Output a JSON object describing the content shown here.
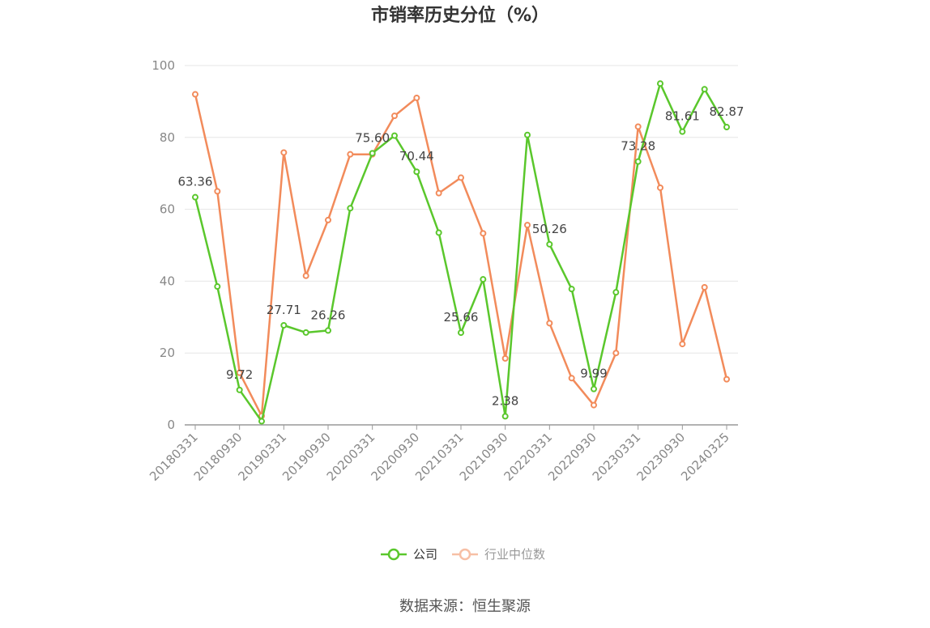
{
  "chart_data": {
    "type": "line",
    "title": "市销率历史分位（%）",
    "source": "数据来源：恒生聚源",
    "ylim": [
      0,
      100
    ],
    "yticks": [
      0,
      20,
      40,
      60,
      80,
      100
    ],
    "x": [
      "20180331",
      "20180630",
      "20180930",
      "20181231",
      "20190331",
      "20190630",
      "20190930",
      "20191231",
      "20200331",
      "20200630",
      "20200930",
      "20201231",
      "20210331",
      "20210630",
      "20210930",
      "20211231",
      "20220331",
      "20220630",
      "20220930",
      "20221231",
      "20230331",
      "20230630",
      "20230930",
      "20231231",
      "20240325"
    ],
    "xtick_labels": [
      "20180331",
      "20180930",
      "20190331",
      "20190930",
      "20200331",
      "20200930",
      "20210331",
      "20210930",
      "20220331",
      "20220930",
      "20230331",
      "20230930",
      "20240325"
    ],
    "grid": true,
    "legend_position": "bottom",
    "series": [
      {
        "name": "公司",
        "color": "#5ac72c",
        "values": [
          63.36,
          38.5,
          9.72,
          1.0,
          27.71,
          25.7,
          26.26,
          60.3,
          75.6,
          80.5,
          70.44,
          53.5,
          25.66,
          40.5,
          2.38,
          80.7,
          50.26,
          37.8,
          9.99,
          36.9,
          73.28,
          95.0,
          81.61,
          93.4,
          82.87
        ],
        "labels": [
          "63.36",
          "",
          "9.72",
          "",
          "27.71",
          "",
          "26.26",
          "",
          "75.60",
          "",
          "70.44",
          "",
          "25.66",
          "",
          "2.38",
          "",
          "50.26",
          "",
          "9.99",
          "",
          "73.28",
          "",
          "81.61",
          "",
          "82.87"
        ]
      },
      {
        "name": "行业中位数",
        "color": "#f28b5b",
        "values": [
          92.0,
          65.0,
          14.5,
          2.5,
          75.8,
          41.5,
          57.0,
          75.3,
          75.3,
          86.0,
          91.0,
          64.5,
          68.8,
          53.3,
          18.5,
          55.6,
          28.3,
          13.0,
          5.5,
          20.0,
          83.0,
          66.0,
          22.5,
          38.3,
          12.7
        ]
      }
    ]
  }
}
